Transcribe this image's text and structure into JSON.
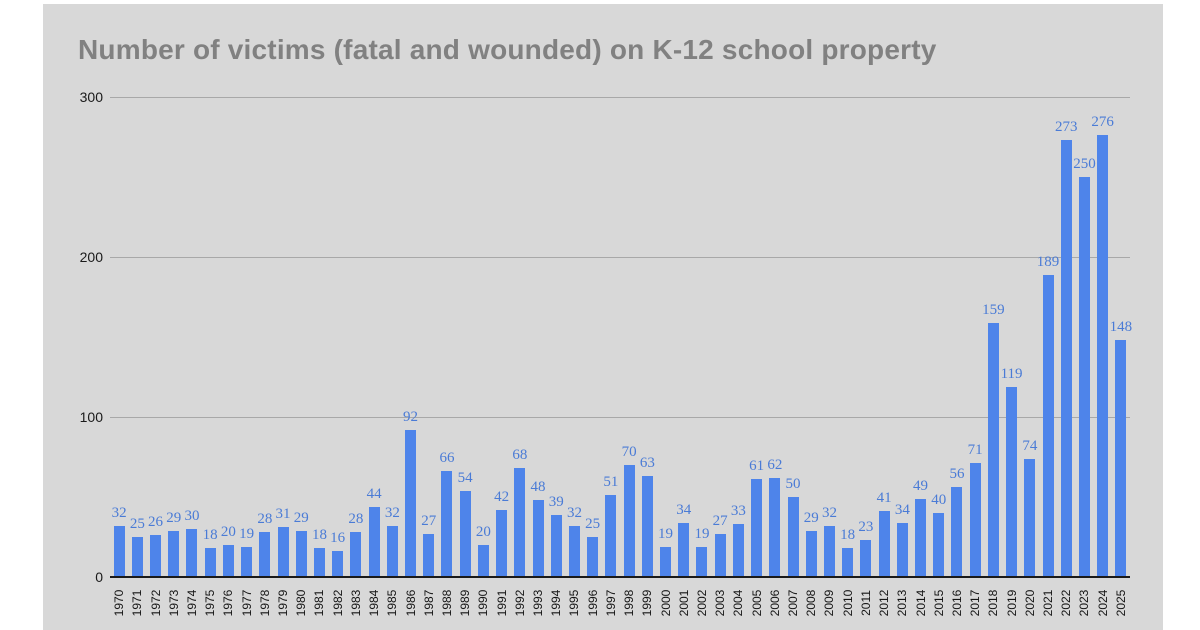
{
  "title": "Number of victims (fatal and wounded) on K-12 school property",
  "chart_data": {
    "type": "bar",
    "title": "Number of victims (fatal and wounded) on K-12 school property",
    "categories": [
      "1970",
      "1971",
      "1972",
      "1973",
      "1974",
      "1975",
      "1976",
      "1977",
      "1978",
      "1979",
      "1980",
      "1981",
      "1982",
      "1983",
      "1984",
      "1985",
      "1986",
      "1987",
      "1988",
      "1989",
      "1990",
      "1991",
      "1992",
      "1993",
      "1994",
      "1995",
      "1996",
      "1997",
      "1998",
      "1999",
      "2000",
      "2001",
      "2002",
      "2003",
      "2004",
      "2005",
      "2006",
      "2007",
      "2008",
      "2009",
      "2010",
      "2011",
      "2012",
      "2013",
      "2014",
      "2015",
      "2016",
      "2017",
      "2018",
      "2019",
      "2020",
      "2021",
      "2022",
      "2023",
      "2024",
      "2025"
    ],
    "values": [
      32,
      25,
      26,
      29,
      30,
      18,
      20,
      19,
      28,
      31,
      29,
      18,
      16,
      28,
      44,
      32,
      92,
      27,
      66,
      54,
      20,
      42,
      68,
      48,
      39,
      32,
      25,
      51,
      70,
      63,
      19,
      34,
      19,
      27,
      33,
      61,
      62,
      50,
      29,
      32,
      18,
      23,
      41,
      34,
      49,
      40,
      56,
      71,
      159,
      119,
      74,
      189,
      273,
      250,
      276,
      148
    ],
    "xlabel": "",
    "ylabel": "",
    "ylim": [
      0,
      300
    ],
    "yticks": [
      0,
      100,
      200,
      300
    ],
    "grid": true,
    "legend_position": "none",
    "data_labels": true,
    "colors": {
      "bar": "#4e84ea",
      "data_label": "#4a7bd6",
      "panel_background": "#d8d8d8",
      "page_background": "#ffffff",
      "title": "#818181",
      "gridline": "#a8a8a8",
      "axis_line": "#1a1a1a",
      "tick_label": "#1a1a1a"
    }
  }
}
